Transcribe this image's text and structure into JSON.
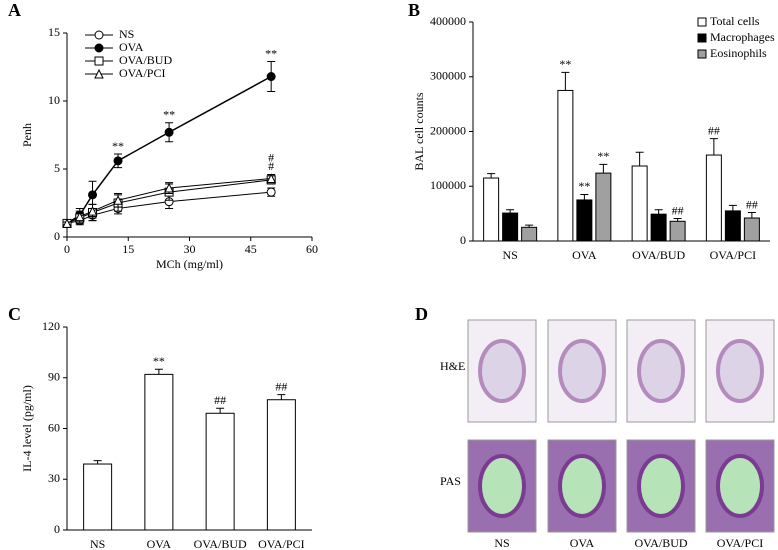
{
  "chart_data": [
    {
      "type": "line",
      "panel": "A",
      "x_label": "MCh (mg/ml)",
      "y_label": "Penh",
      "x": [
        0,
        3.125,
        6.25,
        12.5,
        25,
        50
      ],
      "xlim": [
        0,
        60
      ],
      "xticks": [
        0,
        15,
        30,
        45,
        60
      ],
      "ylim": [
        0,
        15
      ],
      "yticks": [
        0,
        5,
        10,
        15
      ],
      "legend": "upper left",
      "grid": false,
      "series": [
        {
          "name": "NS",
          "color": "#000000",
          "marker": "open-circle",
          "values": [
            1.0,
            1.2,
            1.6,
            2.1,
            2.6,
            3.3
          ],
          "errors": [
            0.1,
            0.3,
            0.4,
            0.4,
            0.5,
            0.3
          ],
          "annotations": [
            null,
            null,
            null,
            null,
            null,
            null
          ]
        },
        {
          "name": "OVA",
          "color": "#000000",
          "marker": "filled-circle",
          "values": [
            1.0,
            1.6,
            3.1,
            5.6,
            7.7,
            11.8
          ],
          "errors": [
            0.1,
            0.5,
            1.0,
            0.5,
            0.7,
            1.1
          ],
          "annotations": [
            null,
            null,
            null,
            "**",
            "**",
            "**"
          ]
        },
        {
          "name": "OVA/BUD",
          "color": "#000000",
          "marker": "open-square",
          "values": [
            1.0,
            1.4,
            1.8,
            2.5,
            3.3,
            4.2
          ],
          "errors": [
            0.1,
            0.4,
            0.6,
            0.6,
            0.6,
            0.3
          ],
          "annotations": [
            null,
            null,
            null,
            null,
            null,
            "#"
          ]
        },
        {
          "name": "OVA/PCI",
          "color": "#000000",
          "marker": "open-triangle",
          "values": [
            1.0,
            1.5,
            1.9,
            2.7,
            3.6,
            4.3
          ],
          "errors": [
            0.1,
            0.4,
            0.5,
            0.5,
            0.4,
            0.3
          ],
          "annotations": [
            null,
            null,
            null,
            null,
            null,
            "#"
          ]
        }
      ]
    },
    {
      "type": "bar",
      "panel": "B",
      "y_label": "BAL cell counts",
      "categories": [
        "NS",
        "OVA",
        "OVA/BUD",
        "OVA/PCI"
      ],
      "ylim": [
        0,
        400000
      ],
      "yticks": [
        0,
        100000,
        200000,
        300000,
        400000
      ],
      "legend": "upper right",
      "grid": false,
      "series": [
        {
          "name": "Total cells",
          "color": "#ffffff",
          "values": [
            115000,
            275000,
            137000,
            157000
          ],
          "errors": [
            8000,
            33000,
            25000,
            30000
          ],
          "annotations": [
            null,
            "**",
            null,
            "##"
          ]
        },
        {
          "name": "Macrophages",
          "color": "#000000",
          "values": [
            51000,
            75000,
            49000,
            55000
          ],
          "errors": [
            6000,
            10000,
            8000,
            10000
          ],
          "annotations": [
            null,
            "**",
            null,
            null
          ]
        },
        {
          "name": "Eosinophils",
          "color": "#a0a0a0",
          "values": [
            25000,
            124000,
            36000,
            42000
          ],
          "errors": [
            4000,
            16000,
            5000,
            10000
          ],
          "annotations": [
            null,
            "**",
            "##",
            "##"
          ]
        }
      ]
    },
    {
      "type": "bar",
      "panel": "C",
      "y_label": "IL-4 level (pg/ml)",
      "categories": [
        "NS",
        "OVA",
        "OVA/BUD",
        "OVA/PCI"
      ],
      "values": [
        39,
        92,
        69,
        77
      ],
      "errors": [
        2,
        3,
        3,
        3
      ],
      "annotations": [
        null,
        "**",
        "##",
        "##"
      ],
      "color": "#ffffff",
      "ylim": [
        0,
        120
      ],
      "yticks": [
        0,
        30,
        60,
        90,
        120
      ],
      "grid": false
    }
  ],
  "figure_d": {
    "panel": "D",
    "rows": [
      "H&E",
      "PAS"
    ],
    "columns": [
      "NS",
      "OVA",
      "OVA/BUD",
      "OVA/PCI"
    ]
  }
}
